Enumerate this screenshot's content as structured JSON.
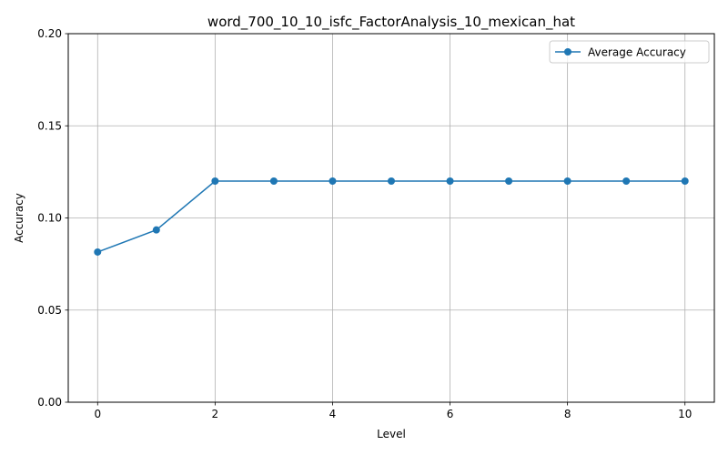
{
  "chart_data": {
    "type": "line",
    "title": "word_700_10_10_isfc_FactorAnalysis_10_mexican_hat",
    "xlabel": "Level",
    "ylabel": "Accuracy",
    "x": [
      0,
      1,
      2,
      3,
      4,
      5,
      6,
      7,
      8,
      9,
      10
    ],
    "series": [
      {
        "name": "Average Accuracy",
        "values": [
          0.0815,
          0.0935,
          0.12,
          0.12,
          0.12,
          0.12,
          0.12,
          0.12,
          0.12,
          0.12,
          0.12
        ],
        "color": "#1f77b4",
        "marker": "circle"
      }
    ],
    "xlim": [
      -0.5,
      10.5
    ],
    "ylim": [
      0,
      0.2
    ],
    "xticks": [
      0,
      2,
      4,
      6,
      8,
      10
    ],
    "xtick_labels": [
      "0",
      "2",
      "4",
      "6",
      "8",
      "10"
    ],
    "yticks": [
      0,
      0.05,
      0.1,
      0.15,
      0.2
    ],
    "ytick_labels": [
      "0.00",
      "0.05",
      "0.10",
      "0.15",
      "0.20"
    ],
    "grid": true,
    "legend_position": "top-right"
  }
}
